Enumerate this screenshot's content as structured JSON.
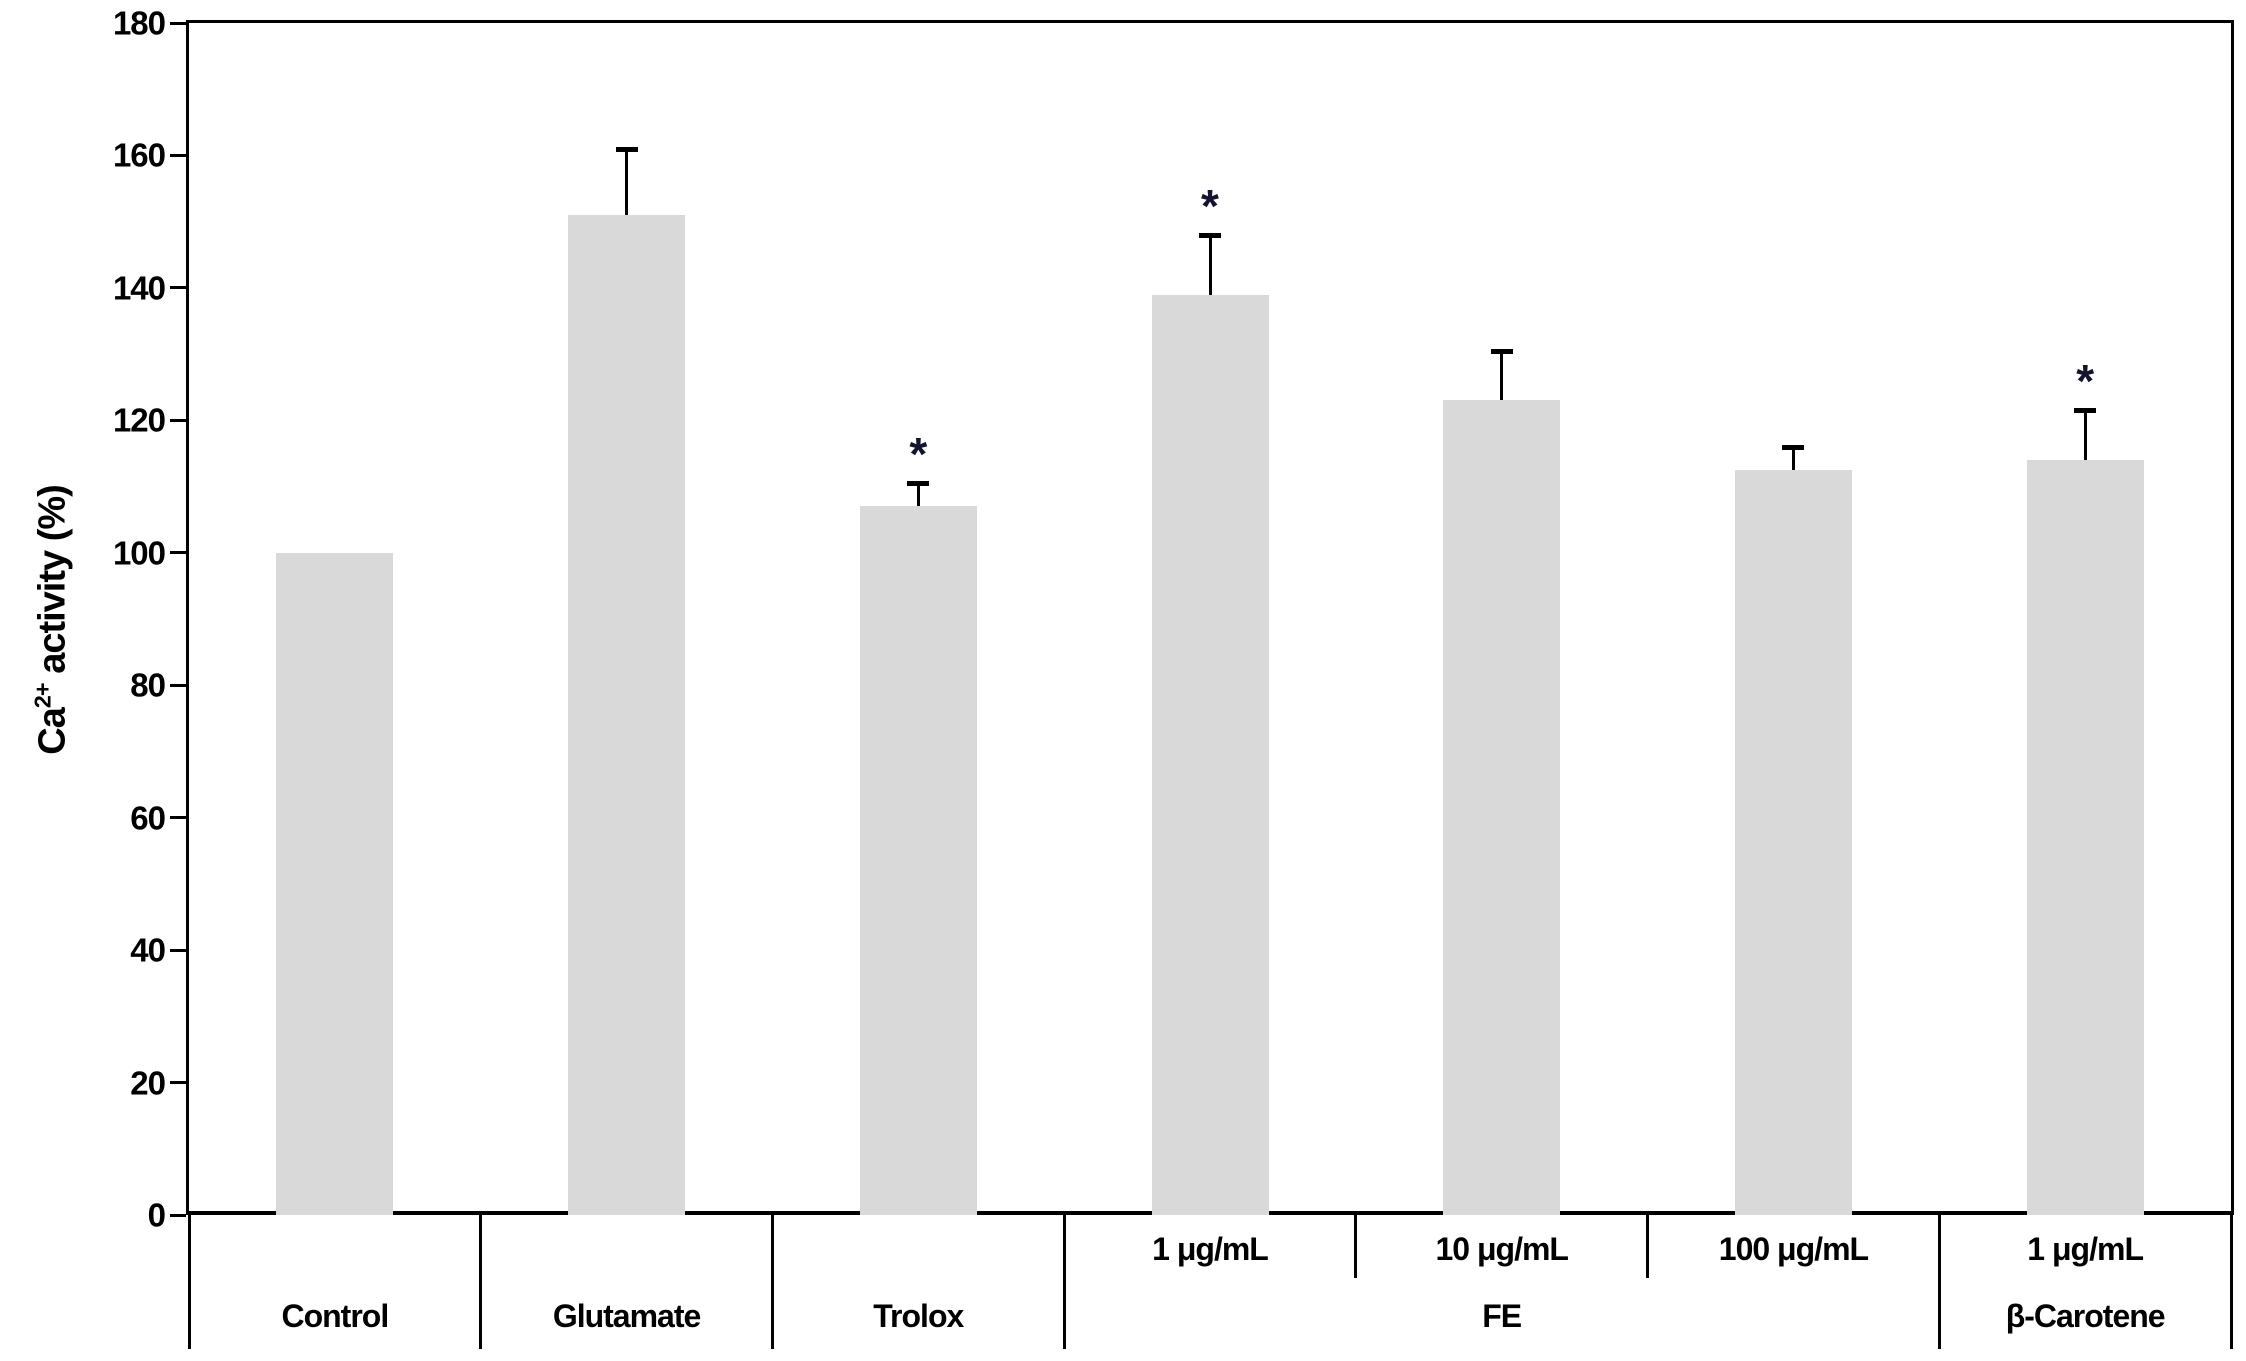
{
  "chart_data": {
    "type": "bar",
    "title": "",
    "ylabel_prefix": "Ca",
    "ylabel_sup": "2+",
    "ylabel_suffix": " activity (%)",
    "xlabel": "",
    "ylim": [
      0,
      180
    ],
    "ytick_step": 20,
    "ytick_labels": [
      "0",
      "20",
      "40",
      "60",
      "80",
      "100",
      "120",
      "140",
      "160",
      "180"
    ],
    "grid": "off",
    "legend": null,
    "bar_color": "#d9d9d9",
    "error_bar_color": "#000000",
    "significance_marker": "*",
    "bars": [
      {
        "dose_label": "",
        "group": "Control",
        "value": 100,
        "error": 0,
        "significant": false
      },
      {
        "dose_label": "",
        "group": "Glutamate",
        "value": 151,
        "error": 10,
        "significant": false
      },
      {
        "dose_label": "",
        "group": "Trolox",
        "value": 107,
        "error": 3.5,
        "significant": true
      },
      {
        "dose_label": "1 μg/mL",
        "group": "FE",
        "value": 139,
        "error": 9,
        "significant": true
      },
      {
        "dose_label": "10 μg/mL",
        "group": "FE",
        "value": 123,
        "error": 7.5,
        "significant": false
      },
      {
        "dose_label": "100 μg/mL",
        "group": "FE",
        "value": 112.5,
        "error": 3.5,
        "significant": false
      },
      {
        "dose_label": "1 μg/mL",
        "group": "β-Carotene",
        "value": 114,
        "error": 7.5,
        "significant": true
      }
    ],
    "group_row": [
      {
        "label": "Control",
        "span": 1
      },
      {
        "label": "Glutamate",
        "span": 1
      },
      {
        "label": "Trolox",
        "span": 1
      },
      {
        "label": "FE",
        "span": 3
      },
      {
        "label": "β-Carotene",
        "span": 1
      }
    ]
  }
}
